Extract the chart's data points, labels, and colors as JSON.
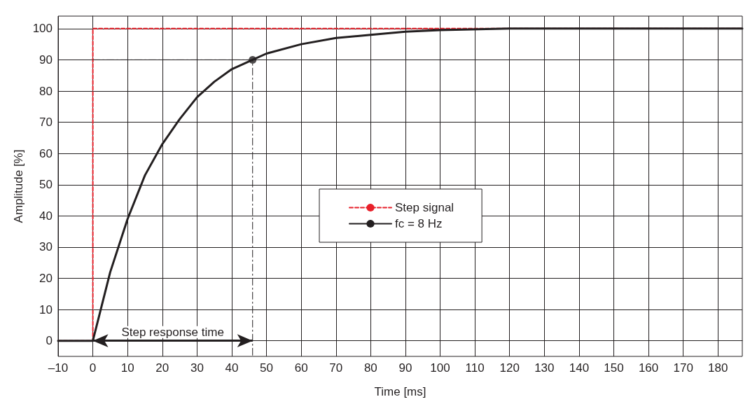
{
  "chart_data": {
    "type": "line",
    "xlabel": "Time [ms]",
    "ylabel": "Amplitude [%]",
    "xlim": [
      -10,
      187
    ],
    "ylim": [
      -5,
      104
    ],
    "xticks": [
      {
        "value": -10,
        "label": "–10"
      },
      0,
      10,
      20,
      30,
      40,
      50,
      60,
      70,
      80,
      90,
      100,
      110,
      120,
      130,
      140,
      150,
      160,
      170,
      180
    ],
    "yticks": [
      0,
      10,
      20,
      30,
      40,
      50,
      60,
      70,
      80,
      90,
      100
    ],
    "grid": true,
    "legend": "center",
    "series": [
      {
        "name": "Step signal",
        "color": "#e8202a",
        "line_style": "dashed",
        "x": [
          -10,
          0,
          0,
          187
        ],
        "values": [
          0,
          0,
          100,
          100
        ]
      },
      {
        "name": "fc = 8 Hz",
        "color": "#231f20",
        "line_style": "solid",
        "x": [
          -10,
          0,
          5,
          10,
          15,
          20,
          25,
          30,
          35,
          40,
          46,
          50,
          60,
          70,
          80,
          90,
          100,
          120,
          187
        ],
        "values": [
          0,
          0,
          22,
          39,
          53,
          63,
          71,
          78,
          83,
          87,
          90,
          92,
          95,
          97,
          98,
          99,
          99.5,
          100,
          100
        ]
      },
      {
        "color": "#231f20",
        "line_style": "dashdot",
        "x": [
          0,
          46,
          46
        ],
        "values": [
          90,
          90,
          -5
        ]
      },
      {
        "type": "scatter",
        "color": "#231f20",
        "marker": "circle",
        "x": [
          46
        ],
        "values": [
          90
        ]
      }
    ],
    "annotations": [
      "Step response time"
    ]
  }
}
